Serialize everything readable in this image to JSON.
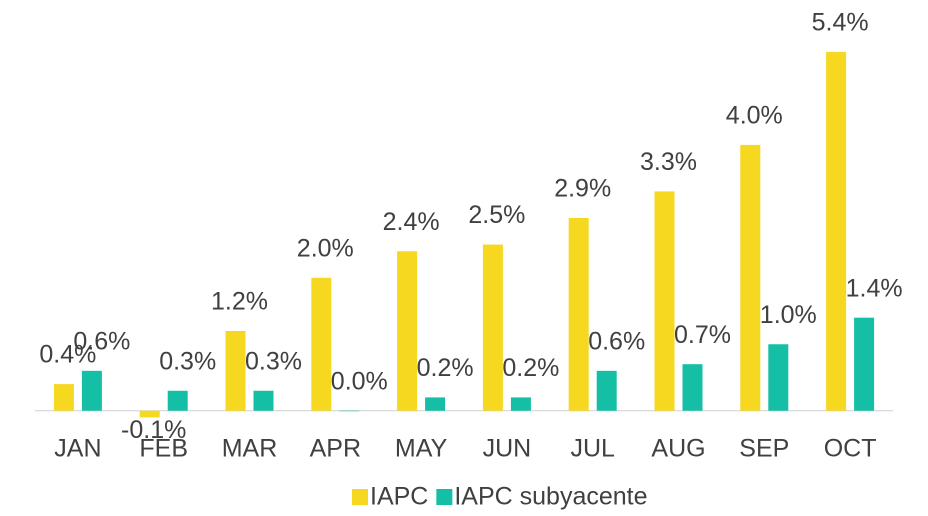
{
  "chart_data": {
    "type": "bar",
    "categories": [
      "JAN",
      "FEB",
      "MAR",
      "APR",
      "MAY",
      "JUN",
      "JUL",
      "AUG",
      "SEP",
      "OCT"
    ],
    "series": [
      {
        "name": "IAPC",
        "color": "#f5d81f",
        "values": [
          0.4,
          -0.1,
          1.2,
          2.0,
          2.4,
          2.5,
          2.9,
          3.3,
          4.0,
          5.4
        ],
        "value_labels": [
          "0.4%",
          "-0.1%",
          "1.2%",
          "2.0%",
          "2.4%",
          "2.5%",
          "2.9%",
          "3.3%",
          "4.0%",
          "5.4%"
        ]
      },
      {
        "name": "IAPC subyacente",
        "color": "#14bfa5",
        "values": [
          0.6,
          0.3,
          0.3,
          0.0,
          0.2,
          0.2,
          0.6,
          0.7,
          1.0,
          1.4
        ],
        "value_labels": [
          "0.6%",
          "0.3%",
          "0.3%",
          "0.0%",
          "0.2%",
          "0.2%",
          "0.6%",
          "0.7%",
          "1.0%",
          "1.4%"
        ]
      }
    ],
    "ylim": [
      -0.2,
      6.0
    ],
    "legend": "bottom"
  }
}
